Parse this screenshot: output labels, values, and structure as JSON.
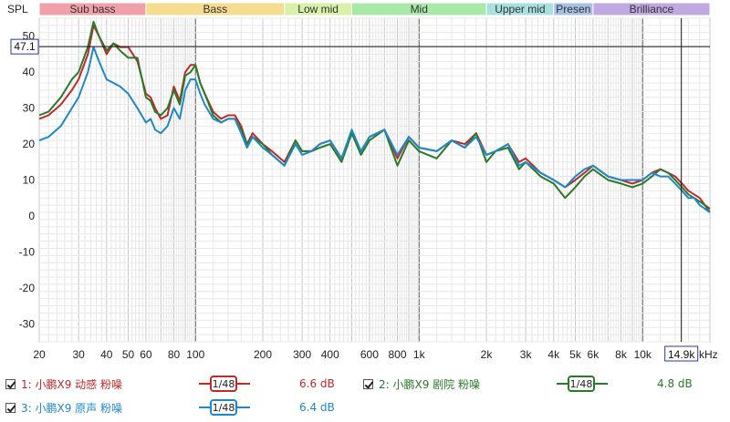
{
  "chart_data": {
    "type": "line",
    "ylabel": "SPL",
    "xaxis": {
      "scale": "log",
      "xlim": [
        20,
        20000
      ],
      "unit_label": "kHz",
      "ticks": [
        {
          "v": 20,
          "t": "20"
        },
        {
          "v": 30,
          "t": "30"
        },
        {
          "v": 40,
          "t": "40"
        },
        {
          "v": 50,
          "t": "50"
        },
        {
          "v": 60,
          "t": "60"
        },
        {
          "v": 80,
          "t": "80"
        },
        {
          "v": 100,
          "t": "100"
        },
        {
          "v": 200,
          "t": "200"
        },
        {
          "v": 300,
          "t": "300"
        },
        {
          "v": 400,
          "t": "400"
        },
        {
          "v": 600,
          "t": "600"
        },
        {
          "v": 800,
          "t": "800"
        },
        {
          "v": 1000,
          "t": "1k"
        },
        {
          "v": 2000,
          "t": "2k"
        },
        {
          "v": 3000,
          "t": "3k"
        },
        {
          "v": 4000,
          "t": "4k"
        },
        {
          "v": 5000,
          "t": "5k"
        },
        {
          "v": 6000,
          "t": "6k"
        },
        {
          "v": 8000,
          "t": "8k"
        },
        {
          "v": 10000,
          "t": "10k"
        }
      ]
    },
    "yaxis": {
      "ylim": [
        -35,
        55
      ],
      "ticks": [
        -30,
        -20,
        -10,
        0,
        10,
        20,
        30,
        40,
        50
      ]
    },
    "grid": true,
    "bands": [
      {
        "label": "Sub bass",
        "from": 20,
        "to": 60,
        "color": "#f0a0a8"
      },
      {
        "label": "Bass",
        "from": 60,
        "to": 250,
        "color": "#f5dc90"
      },
      {
        "label": "Low mid",
        "from": 250,
        "to": 500,
        "color": "#d8f0a8"
      },
      {
        "label": "Mid",
        "from": 500,
        "to": 2000,
        "color": "#a8e8a8"
      },
      {
        "label": "Upper mid",
        "from": 2000,
        "to": 4000,
        "color": "#a8e0e0"
      },
      {
        "label": "Presen",
        "from": 4000,
        "to": 6000,
        "color": "#a8c0e8"
      },
      {
        "label": "Brilliance",
        "from": 6000,
        "to": 20000,
        "color": "#c0a8e0"
      }
    ],
    "cursor": {
      "x_label": "14.9k",
      "x_value": 14900,
      "y_label": "47.1",
      "y_value": 47.1
    },
    "series": [
      {
        "name": "1: 小鹏X9 动感 粉噪",
        "color": "#c0282a",
        "smoothing": "1/48",
        "level": "6.6 dB",
        "x": [
          20,
          22,
          25,
          28,
          30,
          33,
          35,
          37,
          40,
          43,
          46,
          50,
          55,
          60,
          63,
          66,
          70,
          75,
          80,
          85,
          90,
          95,
          100,
          105,
          110,
          120,
          130,
          140,
          150,
          160,
          170,
          180,
          200,
          220,
          250,
          280,
          300,
          330,
          360,
          400,
          450,
          500,
          550,
          600,
          700,
          800,
          900,
          1000,
          1200,
          1400,
          1600,
          1800,
          2000,
          2200,
          2500,
          2800,
          3000,
          3500,
          4000,
          4500,
          5000,
          5500,
          6000,
          7000,
          8000,
          9000,
          10000,
          11000,
          12000,
          13000,
          14000,
          15000,
          16000,
          17000,
          18000,
          19000,
          20000
        ],
        "y": [
          27,
          28,
          31,
          35,
          38,
          45,
          53,
          50,
          45,
          48,
          47,
          47,
          43,
          34,
          33,
          30,
          27,
          28,
          36,
          32,
          40,
          42,
          42,
          37,
          34,
          29,
          27,
          28,
          28,
          25,
          20,
          23,
          20,
          18,
          15,
          21,
          18,
          18,
          20,
          21,
          16,
          23,
          18,
          22,
          24,
          16,
          22,
          19,
          18,
          21,
          20,
          23,
          17,
          18,
          20,
          15,
          16,
          12,
          10,
          8,
          10,
          12,
          14,
          11,
          10,
          9,
          10,
          12,
          13,
          12,
          11,
          9,
          7,
          6,
          5,
          3,
          2
        ]
      },
      {
        "name": "2: 小鹏X9 剧院 粉噪",
        "color": "#2a7a2a",
        "smoothing": "1/48",
        "level": "4.8 dB",
        "x": [
          20,
          22,
          25,
          28,
          30,
          33,
          35,
          37,
          40,
          43,
          46,
          50,
          55,
          60,
          63,
          66,
          70,
          75,
          80,
          85,
          90,
          95,
          100,
          105,
          110,
          120,
          130,
          140,
          150,
          160,
          170,
          180,
          200,
          220,
          250,
          280,
          300,
          330,
          360,
          400,
          450,
          500,
          550,
          600,
          700,
          800,
          900,
          1000,
          1200,
          1400,
          1600,
          1800,
          2000,
          2200,
          2500,
          2800,
          3000,
          3500,
          4000,
          4500,
          5000,
          5500,
          6000,
          7000,
          8000,
          9000,
          10000,
          11000,
          12000,
          13000,
          14000,
          15000,
          16000,
          17000,
          18000,
          19000,
          20000
        ],
        "y": [
          28,
          29,
          33,
          38,
          40,
          47,
          54,
          50,
          46,
          48,
          46,
          44,
          44,
          33,
          32,
          29,
          28,
          30,
          35,
          31,
          39,
          40,
          42,
          37,
          34,
          28,
          26,
          27,
          27,
          24,
          20,
          22,
          20,
          17,
          14,
          21,
          18,
          18,
          19,
          20,
          15,
          23,
          17,
          21,
          24,
          14,
          21,
          18,
          16,
          21,
          19,
          23,
          15,
          18,
          19,
          13,
          15,
          11,
          9,
          5,
          8,
          11,
          13,
          10,
          9,
          8,
          9,
          11,
          13,
          12,
          10,
          8,
          6,
          5,
          4,
          3,
          1
        ]
      },
      {
        "name": "3: 小鹏X9 原声 粉噪",
        "color": "#1e88c8",
        "smoothing": "1/48",
        "level": "6.4 dB",
        "x": [
          20,
          22,
          25,
          28,
          30,
          33,
          35,
          37,
          40,
          43,
          46,
          50,
          55,
          60,
          63,
          66,
          70,
          75,
          80,
          85,
          90,
          95,
          100,
          105,
          110,
          120,
          130,
          140,
          150,
          160,
          170,
          180,
          200,
          220,
          250,
          280,
          300,
          330,
          360,
          400,
          450,
          500,
          550,
          600,
          700,
          800,
          900,
          1000,
          1200,
          1400,
          1600,
          1800,
          2000,
          2200,
          2500,
          2800,
          3000,
          3500,
          4000,
          4500,
          5000,
          5500,
          6000,
          7000,
          8000,
          9000,
          10000,
          11000,
          12000,
          13000,
          14000,
          15000,
          16000,
          17000,
          18000,
          19000,
          20000
        ],
        "y": [
          21,
          22,
          25,
          30,
          33,
          40,
          47,
          43,
          38,
          37,
          36,
          34,
          30,
          26,
          27,
          24,
          23,
          25,
          30,
          27,
          35,
          38,
          38,
          34,
          31,
          27,
          26,
          27,
          27,
          23,
          19,
          22,
          19,
          17,
          14,
          20,
          17,
          18,
          20,
          21,
          16,
          24,
          18,
          22,
          24,
          17,
          22,
          19,
          18,
          21,
          19,
          22,
          17,
          18,
          20,
          14,
          15,
          12,
          10,
          8,
          11,
          13,
          14,
          11,
          10,
          10,
          10,
          12,
          11,
          11,
          9,
          7,
          5,
          5,
          3,
          2,
          1
        ]
      }
    ]
  }
}
